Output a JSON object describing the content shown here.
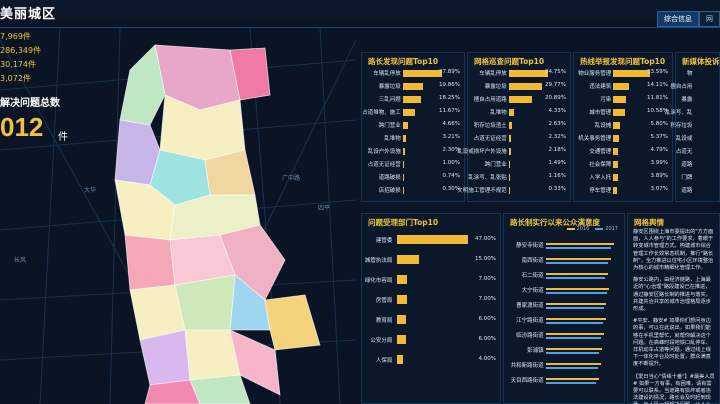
{
  "app": {
    "title": "美丽城区"
  },
  "top_tabs": [
    {
      "label": "综合信息"
    },
    {
      "label": "网"
    }
  ],
  "stats": {
    "lines": [
      "7,969件",
      "286,349件",
      "30,174件",
      "3,072件"
    ],
    "resolved_label": "解决问题总数",
    "resolved_value": "012",
    "resolved_unit": "件"
  },
  "map": {
    "place_labels": [
      "大华",
      "广中路",
      "四平",
      "长风"
    ]
  },
  "panels": {
    "road": {
      "title": "路长发现问题Top10",
      "rows": [
        {
          "label": "车辆乱停放",
          "pct": 37.89,
          "value": "37.89%"
        },
        {
          "label": "暴露垃圾",
          "pct": 19.86,
          "value": "19.86%"
        },
        {
          "label": "三乱问题",
          "pct": 18.25,
          "value": "18.25%"
        },
        {
          "label": "占道堆物、施工",
          "pct": 11.67,
          "value": "11.67%"
        },
        {
          "label": "跨门营业",
          "pct": 4.66,
          "value": "4.66%"
        },
        {
          "label": "乱堆物",
          "pct": 3.21,
          "value": "3.21%"
        },
        {
          "label": "乱设户外设施",
          "pct": 2.3,
          "value": "2.30%"
        },
        {
          "label": "占道无证经营",
          "pct": 1.0,
          "value": "1.00%"
        },
        {
          "label": "道路破损",
          "pct": 0.74,
          "value": "0.74%"
        },
        {
          "label": "店招破损",
          "pct": 0.3,
          "value": "0.30%"
        }
      ]
    },
    "grid": {
      "title": "网格巡查问题Top10",
      "rows": [
        {
          "label": "车辆乱停放",
          "pct": 34.75,
          "value": "34.75%"
        },
        {
          "label": "暴露垃圾",
          "pct": 29.77,
          "value": "29.77%"
        },
        {
          "label": "擅自占用道路",
          "pct": 20.89,
          "value": "20.89%"
        },
        {
          "label": "乱堆物",
          "pct": 4.33,
          "value": "4.33%"
        },
        {
          "label": "积存垃圾渣土",
          "pct": 2.63,
          "value": "2.63%"
        },
        {
          "label": "占道无证经营",
          "pct": 2.32,
          "value": "2.32%"
        },
        {
          "label": "乱设或损坏户外设施",
          "pct": 2.18,
          "value": "2.18%"
        },
        {
          "label": "跨门营业",
          "pct": 1.49,
          "value": "1.49%"
        },
        {
          "label": "乱涂写、乱张贴",
          "pct": 1.16,
          "value": "1.16%"
        },
        {
          "label": "文明施工管理不规范",
          "pct": 0.33,
          "value": "0.33%"
        }
      ]
    },
    "hotline": {
      "title": "热线举报发现问题Top10",
      "rows": [
        {
          "label": "物业服务管理",
          "pct": 33.59,
          "value": "33.59%"
        },
        {
          "label": "违法建筑",
          "pct": 14.11,
          "value": "14.11%"
        },
        {
          "label": "污染",
          "pct": 11.81,
          "value": "11.81%"
        },
        {
          "label": "城市管理",
          "pct": 10.58,
          "value": "10.58%"
        },
        {
          "label": "乱设摊",
          "pct": 5.8,
          "value": "5.80%"
        },
        {
          "label": "机关事务管理",
          "pct": 5.37,
          "value": "5.37%"
        },
        {
          "label": "交通管理",
          "pct": 4.79,
          "value": "4.79%"
        },
        {
          "label": "社会保障",
          "pct": 3.99,
          "value": "3.99%"
        },
        {
          "label": "入学入托",
          "pct": 3.89,
          "value": "3.89%"
        },
        {
          "label": "停车管理",
          "pct": 3.07,
          "value": "3.07%"
        }
      ]
    },
    "newmedia": {
      "title": "新媒体投诉 Top",
      "rows": [
        {
          "label": "物",
          "pct": 0
        },
        {
          "label": "擅自占用",
          "pct": 0
        },
        {
          "label": "暴露",
          "pct": 0
        },
        {
          "label": "乱涂写、乱",
          "pct": 0
        },
        {
          "label": "积存垃圾",
          "pct": 0
        },
        {
          "label": "乱设或",
          "pct": 0
        },
        {
          "label": "占道无",
          "pct": 0
        },
        {
          "label": "道路",
          "pct": 0
        },
        {
          "label": "门牌",
          "pct": 0
        },
        {
          "label": "道路",
          "pct": 0
        }
      ]
    },
    "dept": {
      "title": "问题受理部门Top10",
      "rows": [
        {
          "label": "建管委",
          "pct": 47.0,
          "value": "47.00%"
        },
        {
          "label": "城管执法局",
          "pct": 15.0,
          "value": "15.00%"
        },
        {
          "label": "绿化市容局",
          "pct": 7.0,
          "value": "7.00%"
        },
        {
          "label": "房管局",
          "pct": 7.0,
          "value": "7.00%"
        },
        {
          "label": "教育局",
          "pct": 6.0,
          "value": "6.00%"
        },
        {
          "label": "公安分局",
          "pct": 6.0,
          "value": "6.00%"
        },
        {
          "label": "人保局",
          "pct": 4.0,
          "value": "4.00%"
        }
      ]
    },
    "satisfaction": {
      "title": "路长制实行以来公众满意度",
      "legend": [
        "2016",
        "2017"
      ],
      "rows": [
        {
          "label": "静安寺街道",
          "a": 0.95,
          "b": 0.9
        },
        {
          "label": "南西街道",
          "a": 0.9,
          "b": 0.86
        },
        {
          "label": "石二街道",
          "a": 0.86,
          "b": 0.82
        },
        {
          "label": "大宁街道",
          "a": 0.88,
          "b": 0.85
        },
        {
          "label": "曹家渡街道",
          "a": 0.84,
          "b": 0.8
        },
        {
          "label": "江宁路街道",
          "a": 0.83,
          "b": 0.79
        },
        {
          "label": "临汾路街道",
          "a": 0.8,
          "b": 0.76
        },
        {
          "label": "彭浦镇",
          "a": 0.78,
          "b": 0.74
        },
        {
          "label": "共和新路街道",
          "a": 0.76,
          "b": 0.72
        },
        {
          "label": "天目西路街道",
          "a": 0.74,
          "b": 0.7
        }
      ]
    },
    "news": {
      "title": "网格舆情",
      "items": [
        "静安区围绕上海市委提出的\"方方面面，人人参与\"的工作要求，着眼于转变城市管理方式，构建城市综合管理工作长效常态机制，推行\"路长制\"，全力推进以住宅小区环境整治为核心的城市精细化管理工作。",
        "静安公路内，由经济链路，上海最近的\"心治理\"路段建设已在推进，通过静安区路长制的推进与落实，共建共治共享的城市治理格局逐步形成。",
        "#平安、静安# 如果你们想问身边的事，可以在此说出，如果我们能够在手机里帮忙，就帮你解决这个问题。在高峰时段地铁口乱停车、非机动车占道等问题，通过线上线下一体化平台及时处置，群众满意度不断提升。",
        "【爱日当心\"情缘十番\"】#最美人员# 如果一方有事，有困难，请有需要可以联系。当道路有损坏或者违法建设的情况，路长会及时赶到现场，与人民一起解决问题，让人心底更暖。"
      ]
    }
  }
}
